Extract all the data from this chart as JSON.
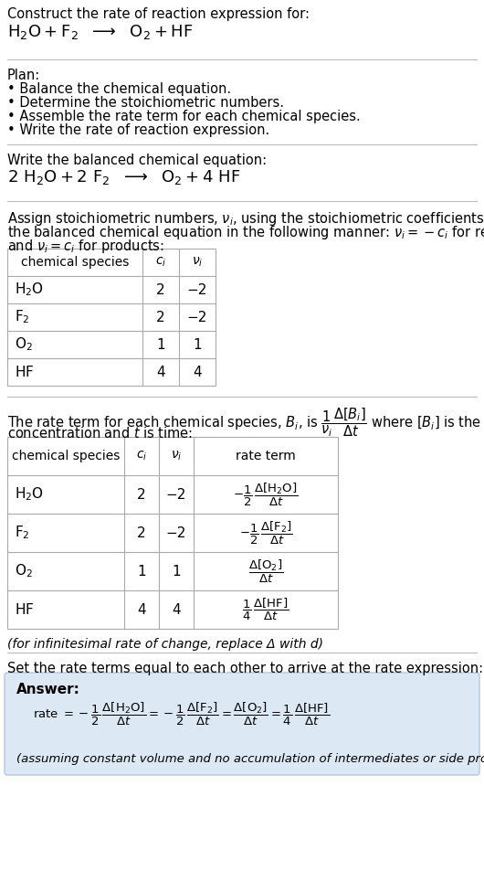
{
  "bg_color": "#ffffff",
  "text_color": "#000000",
  "answer_bg": "#dce9f5",
  "plan_items": [
    "• Balance the chemical equation.",
    "• Determine the stoichiometric numbers.",
    "• Assemble the rate term for each chemical species.",
    "• Write the rate of reaction expression."
  ],
  "table1_rows": [
    [
      "H_2O",
      "2",
      "−2"
    ],
    [
      "F_2",
      "2",
      "−2"
    ],
    [
      "O_2",
      "1",
      "1"
    ],
    [
      "HF",
      "4",
      "4"
    ]
  ],
  "table2_rows": [
    [
      "H_2O",
      "2",
      "−2"
    ],
    [
      "F_2",
      "2",
      "−2"
    ],
    [
      "O_2",
      "1",
      "1"
    ],
    [
      "HF",
      "4",
      "4"
    ]
  ],
  "infinitesimal_note": "(for infinitesimal rate of change, replace Δ with d)",
  "set_equal_text": "Set the rate terms equal to each other to arrive at the rate expression:",
  "answer_label": "Answer:",
  "answer_note": "(assuming constant volume and no accumulation of intermediates or side products)"
}
